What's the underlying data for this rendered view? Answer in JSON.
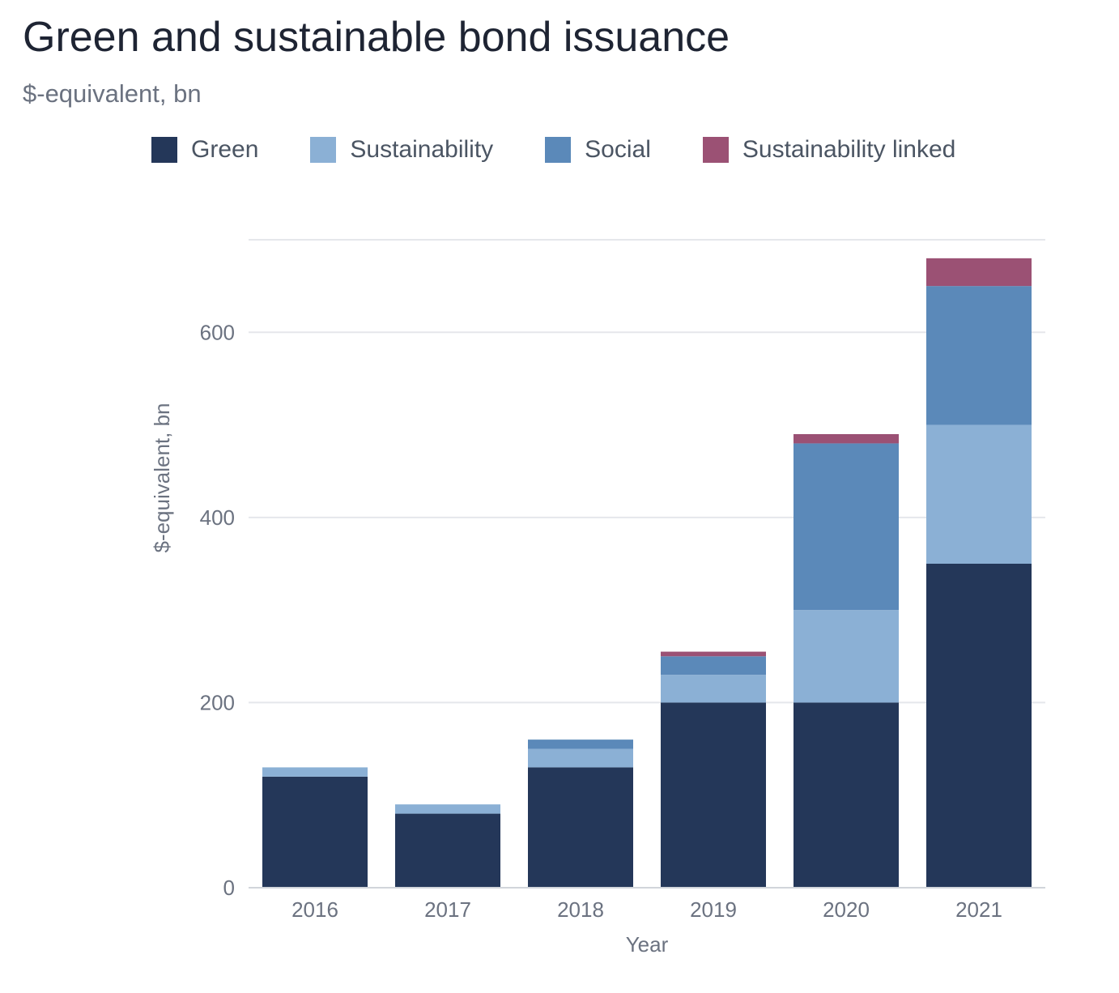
{
  "chart_data": {
    "type": "bar",
    "stacked": true,
    "title": "Green and sustainable bond issuance",
    "subtitle": "$-equivalent, bn",
    "xlabel": "Year",
    "ylabel": "$-equivalent, bn",
    "categories": [
      "2016",
      "2017",
      "2018",
      "2019",
      "2020",
      "2021"
    ],
    "series": [
      {
        "name": "Green",
        "color": "#243759",
        "values": [
          120,
          80,
          130,
          200,
          200,
          350
        ]
      },
      {
        "name": "Sustainability",
        "color": "#8bb0d5",
        "values": [
          10,
          10,
          20,
          30,
          100,
          150
        ]
      },
      {
        "name": "Social",
        "color": "#5b89b9",
        "values": [
          0,
          0,
          10,
          20,
          180,
          150
        ]
      },
      {
        "name": "Sustainability linked",
        "color": "#9b5174",
        "values": [
          0,
          0,
          0,
          5,
          10,
          30
        ]
      }
    ],
    "ylim": [
      0,
      700
    ],
    "yticks": [
      0,
      200,
      400,
      600
    ],
    "grid": true,
    "legend_position": "top"
  }
}
